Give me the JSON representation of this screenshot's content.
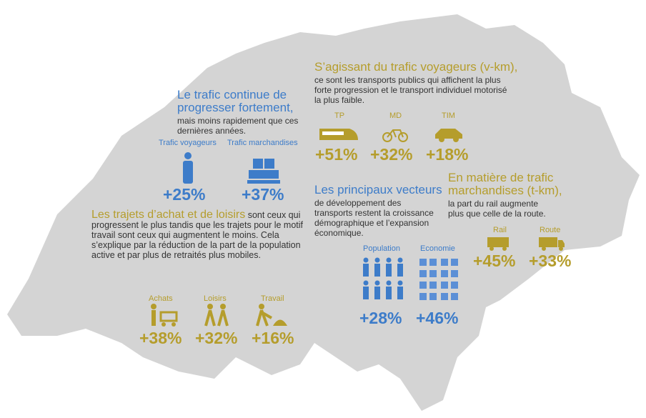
{
  "overview": {
    "title": "Le trafic continue de progresser fortement,",
    "text": "mais moins rapidement que ces dernières années.",
    "items": [
      {
        "label": "Trafic voyageurs",
        "value": "+25%"
      },
      {
        "label": "Trafic marchandises",
        "value": "+37%"
      }
    ]
  },
  "trips": {
    "title": "Les trajets d’achat et de loisirs",
    "text": "sont ceux qui progressent le plus tandis que les trajets pour le motif travail sont ceux qui augmentent le moins. Cela s’explique par la réduction de la part de la population active et par plus de retraités plus mobiles.",
    "items": [
      {
        "label": "Achats",
        "value": "+38%"
      },
      {
        "label": "Loisirs",
        "value": "+32%"
      },
      {
        "label": "Travail",
        "value": "+16%"
      }
    ]
  },
  "passenger": {
    "title": "S’agissant du trafic voyageurs (v-km),",
    "text": "ce sont les transports publics qui affichent la plus forte progression et le transport individuel motorisé la plus faible.",
    "items": [
      {
        "label": "TP",
        "value": "+51%"
      },
      {
        "label": "MD",
        "value": "+32%"
      },
      {
        "label": "TIM",
        "value": "+18%"
      }
    ]
  },
  "drivers": {
    "title": "Les principaux vecteurs",
    "text": "de développement des transports restent la croissance démographique et l’expansion économique.",
    "items": [
      {
        "label": "Population",
        "value": "+28%"
      },
      {
        "label": "Economie",
        "value": "+46%"
      }
    ]
  },
  "freight": {
    "title": "En matière de trafic marchandises (t-km),",
    "text": "la part du rail augmente plus que celle de la route.",
    "items": [
      {
        "label": "Rail",
        "value": "+45%"
      },
      {
        "label": "Route",
        "value": "+33%"
      }
    ]
  }
}
